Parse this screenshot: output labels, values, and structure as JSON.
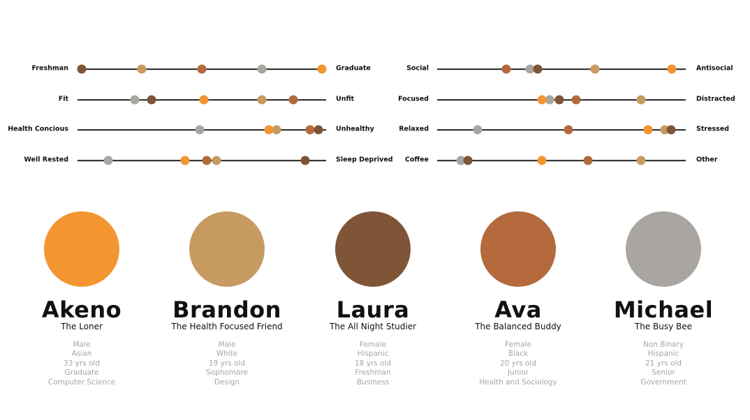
{
  "colors": {
    "akeno": "#f39530",
    "brandon": "#c79a62",
    "laura": "#7f5537",
    "ava": "#b46a3c",
    "michael": "#a9a6a1"
  },
  "scales": [
    {
      "left": "Freshman",
      "right": "Graduate",
      "values": {
        "akeno": 1.0,
        "brandon": 0.25,
        "laura": 0.0,
        "ava": 0.5,
        "michael": 0.75
      }
    },
    {
      "left": "Fit",
      "right": "Unfit",
      "values": {
        "akeno": 0.51,
        "brandon": 0.75,
        "laura": 0.29,
        "ava": 0.88,
        "michael": 0.22
      }
    },
    {
      "left": "Health Concious",
      "right": "Unhealthy",
      "values": {
        "akeno": 0.78,
        "brandon": 0.81,
        "laura": 0.985,
        "ava": 0.95,
        "michael": 0.49
      }
    },
    {
      "left": "Well Rested",
      "right": "Sleep Deprived",
      "values": {
        "akeno": 0.43,
        "brandon": 0.56,
        "laura": 0.93,
        "ava": 0.52,
        "michael": 0.11
      }
    },
    {
      "left": "Social",
      "right": "Antisocial",
      "values": {
        "akeno": 0.96,
        "brandon": 0.64,
        "laura": 0.4,
        "ava": 0.27,
        "michael": 0.37
      }
    },
    {
      "left": "Focused",
      "right": "Distracted",
      "values": {
        "akeno": 0.42,
        "brandon": 0.83,
        "laura": 0.49,
        "ava": 0.56,
        "michael": 0.45
      }
    },
    {
      "left": "Relaxed",
      "right": "Stressed",
      "values": {
        "akeno": 0.86,
        "brandon": 0.93,
        "laura": 0.955,
        "ava": 0.53,
        "michael": 0.15
      }
    },
    {
      "left": "Coffee",
      "right": "Other",
      "values": {
        "akeno": 0.42,
        "brandon": 0.83,
        "laura": 0.11,
        "ava": 0.61,
        "michael": 0.08
      }
    }
  ],
  "personas": [
    {
      "key": "akeno",
      "name": "Akeno",
      "role": "The Loner",
      "details": [
        "Male",
        "Asian",
        "33 yrs old",
        "Graduate",
        "Computer Science"
      ]
    },
    {
      "key": "brandon",
      "name": "Brandon",
      "role": "The Health Focused Friend",
      "details": [
        "Male",
        "White",
        "19 yrs old",
        "Sophomore",
        "Design"
      ]
    },
    {
      "key": "laura",
      "name": "Laura",
      "role": "The All Night Studier",
      "details": [
        "Female",
        "Hispanic",
        "18 yrs old",
        "Freshman",
        "Business"
      ]
    },
    {
      "key": "ava",
      "name": "Ava",
      "role": "The Balanced Buddy",
      "details": [
        "Female",
        "Black",
        "20 yrs old",
        "Junior",
        "Health and Sociology"
      ]
    },
    {
      "key": "michael",
      "name": "Michael",
      "role": "The Busy Bee",
      "details": [
        "Non Binary",
        "Hispanic",
        "21 yrs old",
        "Senior",
        "Government"
      ]
    }
  ]
}
